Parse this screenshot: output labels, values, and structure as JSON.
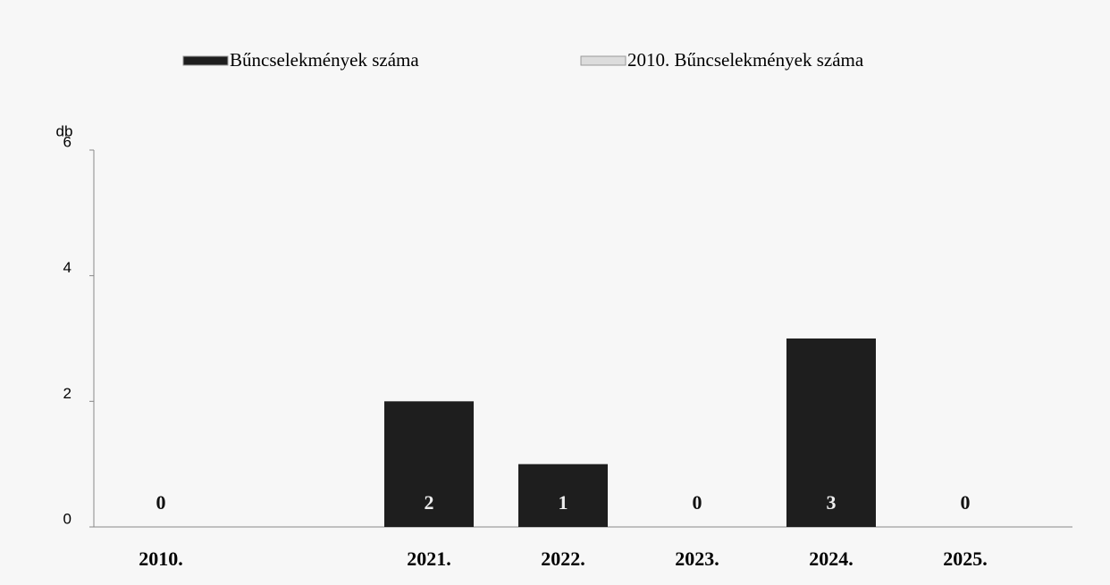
{
  "chart_data": {
    "type": "bar",
    "y_label": "db",
    "categories": [
      "2010.",
      null,
      "2021.",
      "2022.",
      "2023.",
      "2024.",
      "2025."
    ],
    "series": [
      {
        "name": "Bűncselekmények száma",
        "color": "#1e1e1e",
        "values": [
          null,
          null,
          2,
          1,
          0,
          3,
          0
        ]
      },
      {
        "name": "2010. Bűncselekmények száma",
        "color": "#dcdcdc",
        "values": [
          0,
          null,
          null,
          null,
          null,
          null,
          null
        ]
      }
    ],
    "ylim": [
      0,
      6
    ],
    "yticks": [
      0,
      2,
      4,
      6
    ],
    "legend": "top"
  }
}
